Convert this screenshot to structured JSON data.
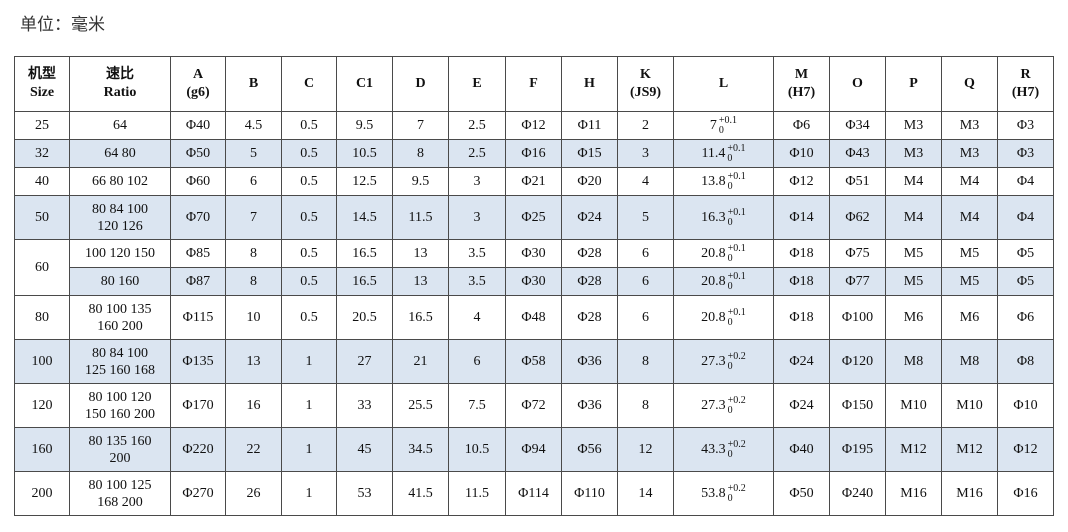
{
  "unit": "单位：毫米",
  "table": {
    "header": [
      [
        "机型",
        "Size"
      ],
      [
        "速比",
        "Ratio"
      ],
      [
        "A",
        "(g6)"
      ],
      [
        "B"
      ],
      [
        "C"
      ],
      [
        "C1"
      ],
      [
        "D"
      ],
      [
        "E"
      ],
      [
        "F"
      ],
      [
        "H"
      ],
      [
        "K",
        "(JS9)"
      ],
      [
        "L"
      ],
      [
        "M",
        "(H7)"
      ],
      [
        "O"
      ],
      [
        "P"
      ],
      [
        "Q"
      ],
      [
        "R",
        "(H7)"
      ]
    ],
    "groups": [
      {
        "size": "25",
        "variants": [
          {
            "highlight": false,
            "ratio": [
              "64"
            ],
            "values": [
              "Φ40",
              "4.5",
              "0.5",
              "9.5",
              "7",
              "2.5",
              "Φ12",
              "Φ11",
              "2"
            ],
            "L": {
              "value": "7",
              "upper": "+0.1",
              "lower": "0"
            },
            "rest": [
              "Φ6",
              "Φ34",
              "M3",
              "M3",
              "Φ3"
            ]
          }
        ]
      },
      {
        "size": "32",
        "variants": [
          {
            "highlight": true,
            "ratio": [
              "64 80"
            ],
            "values": [
              "Φ50",
              "5",
              "0.5",
              "10.5",
              "8",
              "2.5",
              "Φ16",
              "Φ15",
              "3"
            ],
            "L": {
              "value": "11.4",
              "upper": "+0.1",
              "lower": "0"
            },
            "rest": [
              "Φ10",
              "Φ43",
              "M3",
              "M3",
              "Φ3"
            ]
          }
        ]
      },
      {
        "size": "40",
        "variants": [
          {
            "highlight": false,
            "ratio": [
              "66 80 102"
            ],
            "values": [
              "Φ60",
              "6",
              "0.5",
              "12.5",
              "9.5",
              "3",
              "Φ21",
              "Φ20",
              "4"
            ],
            "L": {
              "value": "13.8",
              "upper": "+0.1",
              "lower": "0"
            },
            "rest": [
              "Φ12",
              "Φ51",
              "M4",
              "M4",
              "Φ4"
            ]
          }
        ]
      },
      {
        "size": "50",
        "variants": [
          {
            "highlight": true,
            "ratio": [
              "80 84 100",
              "120 126"
            ],
            "values": [
              "Φ70",
              "7",
              "0.5",
              "14.5",
              "11.5",
              "3",
              "Φ25",
              "Φ24",
              "5"
            ],
            "L": {
              "value": "16.3",
              "upper": "+0.1",
              "lower": "0"
            },
            "rest": [
              "Φ14",
              "Φ62",
              "M4",
              "M4",
              "Φ4"
            ]
          }
        ]
      },
      {
        "size": "60",
        "variants": [
          {
            "highlight": false,
            "ratio": [
              "100 120 150"
            ],
            "values": [
              "Φ85",
              "8",
              "0.5",
              "16.5",
              "13",
              "3.5",
              "Φ30",
              "Φ28",
              "6"
            ],
            "L": {
              "value": "20.8",
              "upper": "+0.1",
              "lower": "0"
            },
            "rest": [
              "Φ18",
              "Φ75",
              "M5",
              "M5",
              "Φ5"
            ]
          },
          {
            "highlight": true,
            "ratio": [
              "80 160"
            ],
            "values": [
              "Φ87",
              "8",
              "0.5",
              "16.5",
              "13",
              "3.5",
              "Φ30",
              "Φ28",
              "6"
            ],
            "L": {
              "value": "20.8",
              "upper": "+0.1",
              "lower": "0"
            },
            "rest": [
              "Φ18",
              "Φ77",
              "M5",
              "M5",
              "Φ5"
            ]
          }
        ]
      },
      {
        "size": "80",
        "variants": [
          {
            "highlight": false,
            "ratio": [
              "80 100 135",
              "160 200"
            ],
            "values": [
              "Φ115",
              "10",
              "0.5",
              "20.5",
              "16.5",
              "4",
              "Φ48",
              "Φ28",
              "6"
            ],
            "L": {
              "value": "20.8",
              "upper": "+0.1",
              "lower": "0"
            },
            "rest": [
              "Φ18",
              "Φ100",
              "M6",
              "M6",
              "Φ6"
            ]
          }
        ]
      },
      {
        "size": "100",
        "variants": [
          {
            "highlight": true,
            "ratio": [
              "80 84 100",
              "125 160 168"
            ],
            "values": [
              "Φ135",
              "13",
              "1",
              "27",
              "21",
              "6",
              "Φ58",
              "Φ36",
              "8"
            ],
            "L": {
              "value": "27.3",
              "upper": "+0.2",
              "lower": "0"
            },
            "rest": [
              "Φ24",
              "Φ120",
              "M8",
              "M8",
              "Φ8"
            ]
          }
        ]
      },
      {
        "size": "120",
        "variants": [
          {
            "highlight": false,
            "ratio": [
              "80 100 120",
              "150 160 200"
            ],
            "values": [
              "Φ170",
              "16",
              "1",
              "33",
              "25.5",
              "7.5",
              "Φ72",
              "Φ36",
              "8"
            ],
            "L": {
              "value": "27.3",
              "upper": "+0.2",
              "lower": "0"
            },
            "rest": [
              "Φ24",
              "Φ150",
              "M10",
              "M10",
              "Φ10"
            ]
          }
        ]
      },
      {
        "size": "160",
        "variants": [
          {
            "highlight": true,
            "ratio": [
              "80 135 160",
              "200"
            ],
            "values": [
              "Φ220",
              "22",
              "1",
              "45",
              "34.5",
              "10.5",
              "Φ94",
              "Φ56",
              "12"
            ],
            "L": {
              "value": "43.3",
              "upper": "+0.2",
              "lower": "0"
            },
            "rest": [
              "Φ40",
              "Φ195",
              "M12",
              "M12",
              "Φ12"
            ]
          }
        ]
      },
      {
        "size": "200",
        "variants": [
          {
            "highlight": false,
            "ratio": [
              "80 100 125",
              "168 200"
            ],
            "values": [
              "Φ270",
              "26",
              "1",
              "53",
              "41.5",
              "11.5",
              "Φ114",
              "Φ110",
              "14"
            ],
            "L": {
              "value": "53.8",
              "upper": "+0.2",
              "lower": "0"
            },
            "rest": [
              "Φ50",
              "Φ240",
              "M16",
              "M16",
              "Φ16"
            ]
          }
        ]
      }
    ]
  }
}
